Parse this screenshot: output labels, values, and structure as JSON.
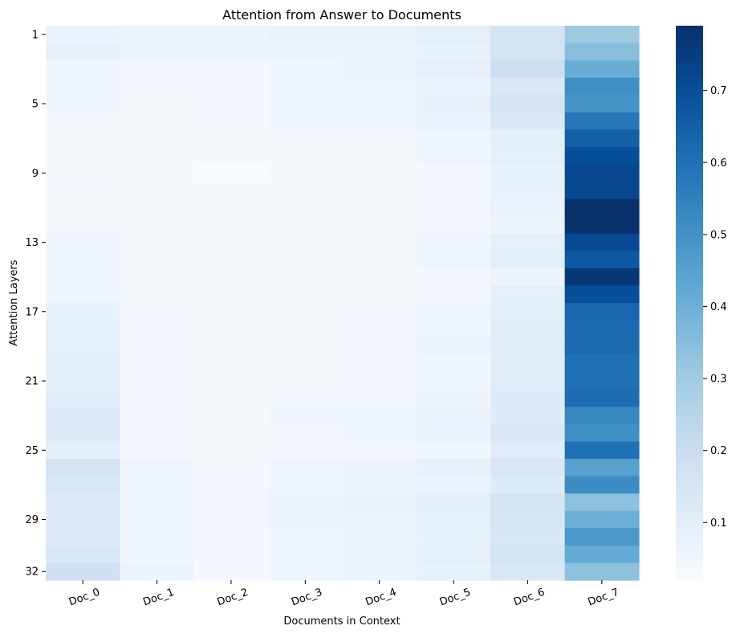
{
  "chart_data": {
    "type": "heatmap",
    "title": "Attention from Answer to Documents",
    "xlabel": "Documents in Context",
    "ylabel": "Attention Layers",
    "x_categories": [
      "Doc_0",
      "Doc_1",
      "Doc_2",
      "Doc_3",
      "Doc_4",
      "Doc_5",
      "Doc_6",
      "Doc_7"
    ],
    "y_categories": [
      "1",
      "2",
      "3",
      "4",
      "5",
      "6",
      "7",
      "8",
      "9",
      "10",
      "11",
      "12",
      "13",
      "14",
      "15",
      "16",
      "17",
      "18",
      "19",
      "20",
      "21",
      "22",
      "23",
      "24",
      "25",
      "26",
      "27",
      "28",
      "29",
      "30",
      "31",
      "32"
    ],
    "y_tick_labels": [
      "1",
      "5",
      "9",
      "13",
      "17",
      "21",
      "25",
      "29",
      "32"
    ],
    "colormap": "Blues",
    "colorbar": {
      "range": [
        0.02,
        0.79
      ],
      "ticks": [
        0.1,
        0.2,
        0.3,
        0.4,
        0.5,
        0.6,
        0.7
      ],
      "tick_labels": [
        "0.1",
        "0.2",
        "0.3",
        "0.4",
        "0.5",
        "0.6",
        "0.7"
      ]
    },
    "values": [
      [
        0.07,
        0.06,
        0.06,
        0.07,
        0.07,
        0.09,
        0.16,
        0.31
      ],
      [
        0.08,
        0.06,
        0.06,
        0.06,
        0.06,
        0.08,
        0.16,
        0.35
      ],
      [
        0.05,
        0.04,
        0.04,
        0.05,
        0.06,
        0.09,
        0.19,
        0.41
      ],
      [
        0.05,
        0.04,
        0.04,
        0.05,
        0.05,
        0.07,
        0.13,
        0.51
      ],
      [
        0.05,
        0.03,
        0.04,
        0.05,
        0.05,
        0.08,
        0.16,
        0.49
      ],
      [
        0.04,
        0.03,
        0.04,
        0.05,
        0.05,
        0.07,
        0.13,
        0.58
      ],
      [
        0.03,
        0.03,
        0.03,
        0.04,
        0.04,
        0.05,
        0.1,
        0.65
      ],
      [
        0.03,
        0.03,
        0.03,
        0.03,
        0.03,
        0.05,
        0.09,
        0.7
      ],
      [
        0.03,
        0.03,
        0.02,
        0.03,
        0.03,
        0.04,
        0.08,
        0.72
      ],
      [
        0.04,
        0.03,
        0.03,
        0.03,
        0.03,
        0.04,
        0.08,
        0.72
      ],
      [
        0.03,
        0.03,
        0.03,
        0.03,
        0.03,
        0.04,
        0.07,
        0.79
      ],
      [
        0.04,
        0.03,
        0.03,
        0.03,
        0.03,
        0.04,
        0.06,
        0.79
      ],
      [
        0.05,
        0.03,
        0.03,
        0.03,
        0.03,
        0.05,
        0.09,
        0.71
      ],
      [
        0.05,
        0.03,
        0.03,
        0.03,
        0.03,
        0.05,
        0.1,
        0.67
      ],
      [
        0.05,
        0.03,
        0.03,
        0.03,
        0.03,
        0.04,
        0.06,
        0.77
      ],
      [
        0.05,
        0.03,
        0.03,
        0.03,
        0.03,
        0.04,
        0.09,
        0.7
      ],
      [
        0.08,
        0.04,
        0.03,
        0.03,
        0.04,
        0.05,
        0.1,
        0.63
      ],
      [
        0.09,
        0.04,
        0.03,
        0.03,
        0.04,
        0.05,
        0.11,
        0.62
      ],
      [
        0.09,
        0.04,
        0.03,
        0.03,
        0.04,
        0.06,
        0.11,
        0.62
      ],
      [
        0.1,
        0.04,
        0.03,
        0.03,
        0.04,
        0.05,
        0.11,
        0.6
      ],
      [
        0.1,
        0.04,
        0.03,
        0.03,
        0.04,
        0.05,
        0.11,
        0.6
      ],
      [
        0.11,
        0.04,
        0.03,
        0.04,
        0.04,
        0.06,
        0.12,
        0.61
      ],
      [
        0.12,
        0.04,
        0.03,
        0.05,
        0.05,
        0.07,
        0.12,
        0.53
      ],
      [
        0.12,
        0.04,
        0.03,
        0.04,
        0.05,
        0.07,
        0.13,
        0.51
      ],
      [
        0.1,
        0.04,
        0.03,
        0.04,
        0.04,
        0.05,
        0.11,
        0.6
      ],
      [
        0.16,
        0.05,
        0.04,
        0.05,
        0.06,
        0.08,
        0.14,
        0.45
      ],
      [
        0.14,
        0.05,
        0.04,
        0.05,
        0.06,
        0.07,
        0.12,
        0.52
      ],
      [
        0.12,
        0.05,
        0.04,
        0.06,
        0.07,
        0.1,
        0.16,
        0.34
      ],
      [
        0.12,
        0.05,
        0.04,
        0.06,
        0.06,
        0.09,
        0.15,
        0.4
      ],
      [
        0.12,
        0.05,
        0.04,
        0.05,
        0.06,
        0.08,
        0.14,
        0.48
      ],
      [
        0.14,
        0.05,
        0.04,
        0.05,
        0.06,
        0.09,
        0.16,
        0.42
      ],
      [
        0.18,
        0.06,
        0.04,
        0.05,
        0.06,
        0.08,
        0.14,
        0.34
      ]
    ]
  }
}
